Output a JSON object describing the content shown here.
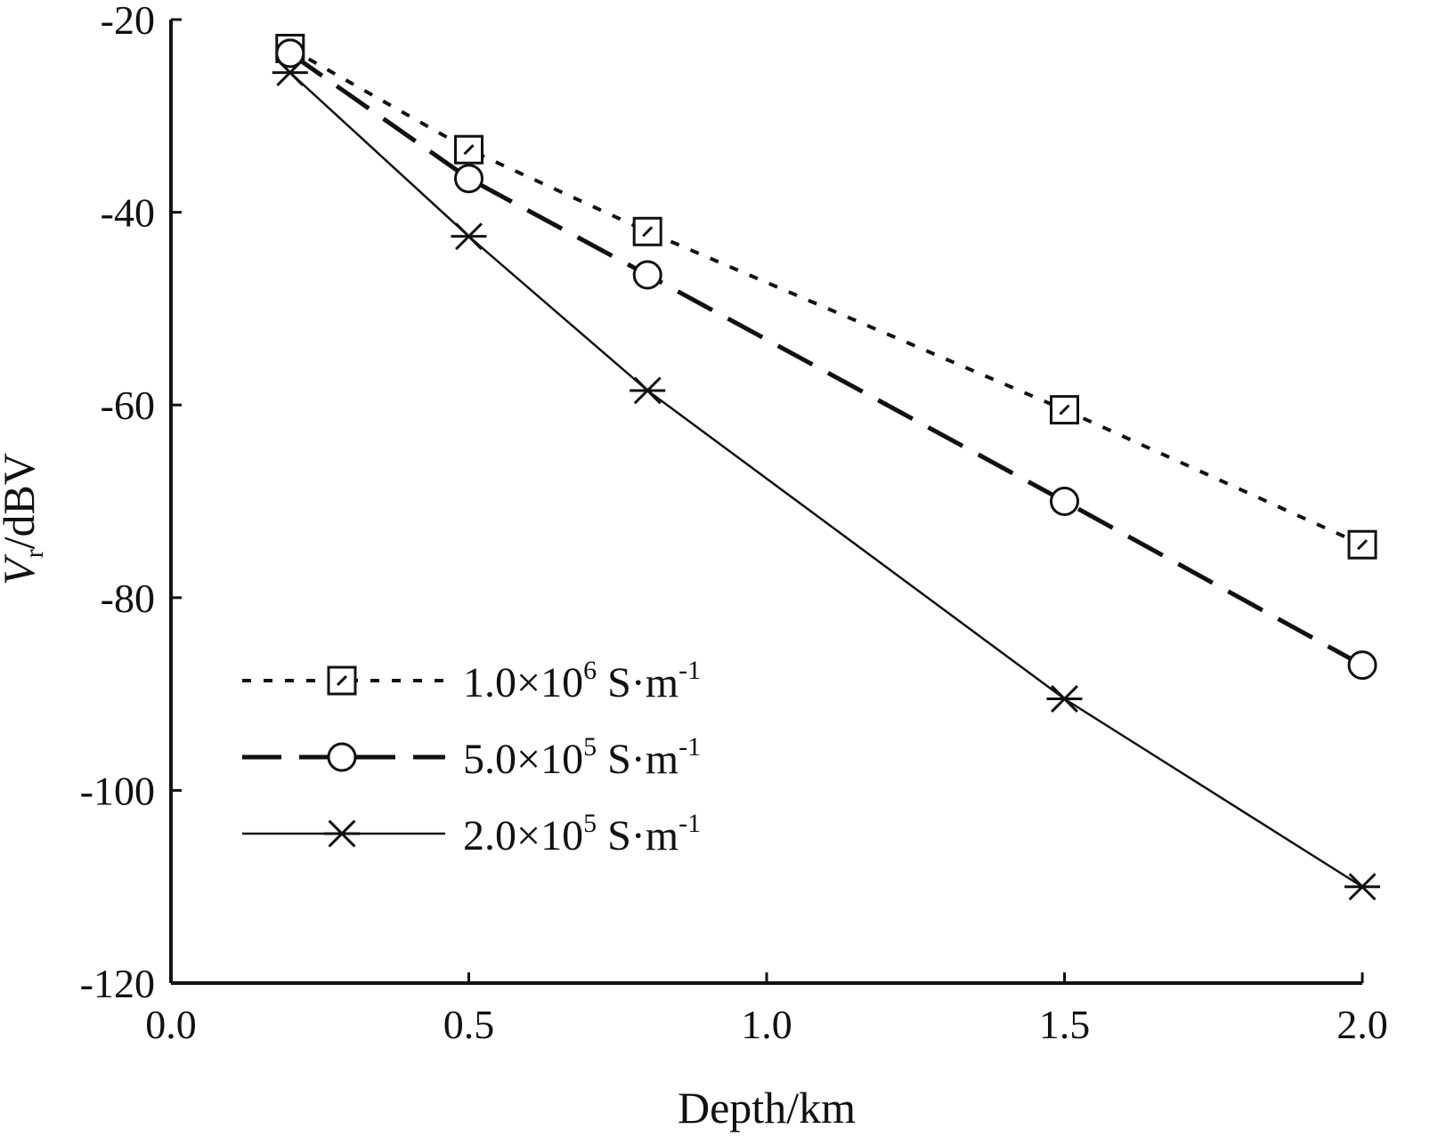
{
  "chart_data": {
    "type": "line",
    "title": "",
    "xlabel": "Depth/km",
    "ylabel": {
      "symbol": "V",
      "subscript": "r",
      "unit": "/dBV"
    },
    "xlim": [
      0.0,
      2.0
    ],
    "ylim": [
      -120,
      -20
    ],
    "xticks": [
      "0.0",
      "0.5",
      "1.0",
      "1.5",
      "2.0"
    ],
    "yticks": [
      "-20",
      "-40",
      "-60",
      "-80",
      "-100",
      "-120"
    ],
    "legend_position": "lower-left",
    "x": [
      0.2,
      0.5,
      0.8,
      1.5,
      2.0
    ],
    "series": [
      {
        "name": "1.0×10^6 S·m^-1",
        "label_main": "1.0×10",
        "label_exp": "6",
        "label_unit": " S·m",
        "label_unit_exp": "-1",
        "marker": "square",
        "line_style": "dotted",
        "values": [
          -23.0,
          -33.5,
          -42.0,
          -60.5,
          -74.5
        ]
      },
      {
        "name": "5.0×10^5 S·m^-1",
        "label_main": "5.0×10",
        "label_exp": "5",
        "label_unit": " S·m",
        "label_unit_exp": "-1",
        "marker": "circle",
        "line_style": "dashed",
        "values": [
          -23.5,
          -36.5,
          -46.5,
          -70.0,
          -87.0
        ]
      },
      {
        "name": "2.0×10^5 S·m^-1",
        "label_main": "2.0×10",
        "label_exp": "5",
        "label_unit": " S·m",
        "label_unit_exp": "-1",
        "marker": "asterisk",
        "line_style": "solid",
        "values": [
          -25.5,
          -42.5,
          -58.5,
          -90.5,
          -110.0
        ]
      }
    ],
    "colors": {
      "ink": "#111111",
      "background": "#ffffff"
    }
  }
}
